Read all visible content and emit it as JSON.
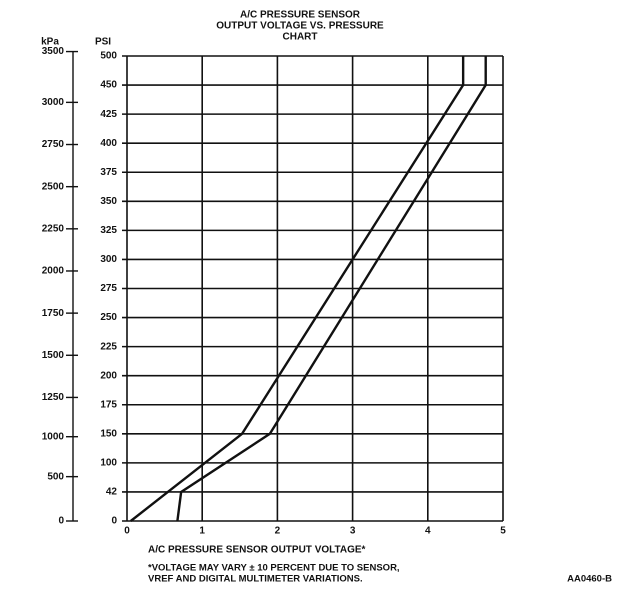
{
  "chart_data": {
    "type": "line",
    "title": [
      "A/C PRESSURE SENSOR",
      "OUTPUT VOLTAGE VS. PRESSURE",
      "CHART"
    ],
    "xlabel": "A/C PRESSURE SENSOR OUTPUT VOLTAGE*",
    "footnote": [
      "*VOLTAGE MAY VARY ± 10 PERCENT DUE TO SENSOR,",
      "VREF AND DIGITAL MULTIMETER VARIATIONS."
    ],
    "figure_code": "AA0460-B",
    "ylabel": "PSI",
    "y2label": "kPa",
    "xlim": [
      0,
      5
    ],
    "xticks": [
      0,
      1,
      2,
      3,
      4,
      5
    ],
    "ylim": [
      0,
      500
    ],
    "yticks": [
      0,
      42,
      100,
      150,
      175,
      200,
      225,
      250,
      275,
      300,
      325,
      350,
      375,
      400,
      425,
      450,
      500
    ],
    "y2lim": [
      0,
      3500
    ],
    "y2ticks": [
      0,
      500,
      1000,
      1250,
      1500,
      1750,
      2000,
      2250,
      2500,
      2750,
      3000,
      3500
    ],
    "grid": true,
    "series": [
      {
        "color": "#111111",
        "x": [
          0.05,
          1.53,
          4.47,
          4.47
        ],
        "values": [
          0,
          150,
          450,
          500
        ]
      },
      {
        "color": "#111111",
        "x": [
          0.67,
          0.72,
          1.9,
          4.77,
          4.77
        ],
        "values": [
          0,
          42,
          150,
          450,
          500
        ]
      }
    ]
  }
}
